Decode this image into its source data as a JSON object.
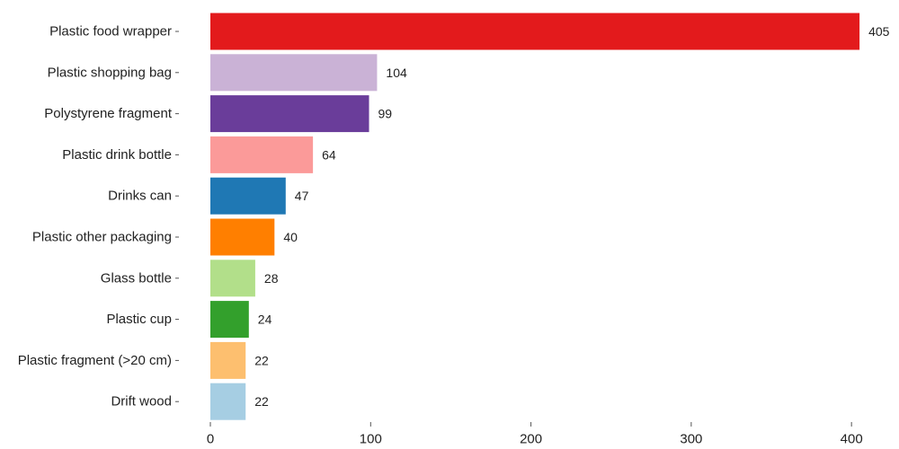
{
  "chart_data": {
    "type": "bar",
    "orientation": "horizontal",
    "title": "",
    "xlabel": "",
    "ylabel": "",
    "categories": [
      "Plastic food wrapper",
      "Plastic shopping bag",
      "Polystyrene fragment",
      "Plastic drink bottle",
      "Drinks can",
      "Plastic other packaging",
      "Glass bottle",
      "Plastic cup",
      "Plastic fragment (>20 cm)",
      "Drift wood"
    ],
    "values": [
      405,
      104,
      99,
      64,
      47,
      40,
      28,
      24,
      22,
      22
    ],
    "value_labels": [
      "405",
      "104",
      "99",
      "64",
      "47",
      "40",
      "28",
      "24",
      "22",
      "22"
    ],
    "colors": [
      "#e31a1c",
      "#cab2d6",
      "#6a3d9a",
      "#fb9a99",
      "#1f78b4",
      "#ff7f00",
      "#b2df8a",
      "#33a02c",
      "#fdbf6f",
      "#a6cee3"
    ],
    "xlim": [
      0,
      410
    ],
    "x_ticks": [
      0,
      100,
      200,
      300,
      400
    ],
    "x_tick_labels": [
      "0",
      "100",
      "200",
      "300",
      "400"
    ],
    "grid": false,
    "legend": "none"
  }
}
